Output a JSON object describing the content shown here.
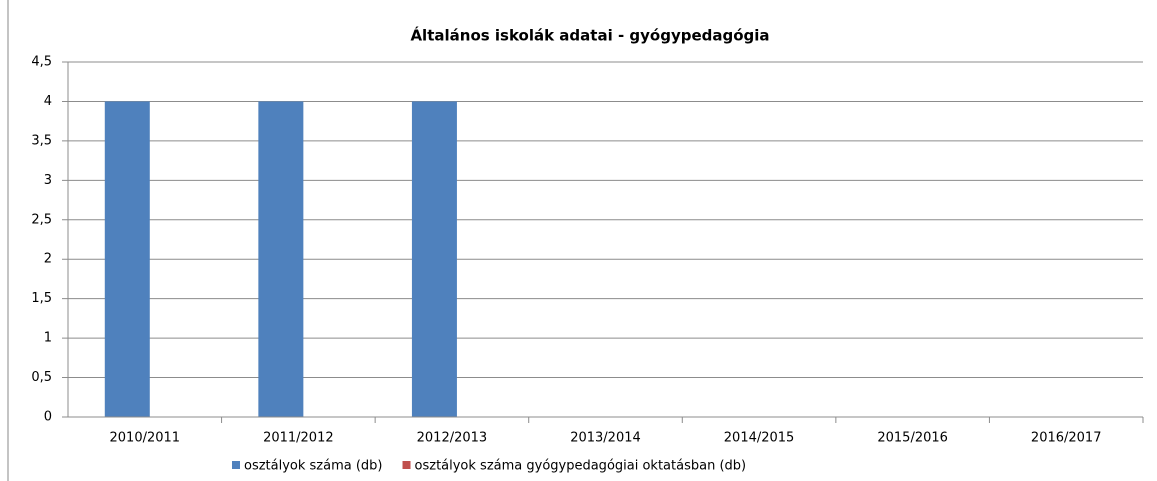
{
  "chart_data": {
    "type": "bar",
    "title": "Általános iskolák adatai - gyógypedagógia",
    "categories": [
      "2010/2011",
      "2011/2012",
      "2012/2013",
      "2013/2014",
      "2014/2015",
      "2015/2016",
      "2016/2017"
    ],
    "series": [
      {
        "name": "osztályok száma (db)",
        "color": "#4f81bd",
        "values": [
          4,
          4,
          4,
          0,
          0,
          0,
          0
        ]
      },
      {
        "name": "osztályok száma gyógypedagógiai oktatásban (db)",
        "color": "#c0504d",
        "values": [
          0,
          0,
          0,
          0,
          0,
          0,
          0
        ]
      }
    ],
    "ylim": [
      0,
      4.5
    ],
    "yticks": [
      0,
      {
        "value": 0.5,
        "label": "0,5"
      },
      1,
      {
        "value": 1.5,
        "label": "1,5"
      },
      2,
      {
        "value": 2.5,
        "label": "2,5"
      },
      3,
      {
        "value": 3.5,
        "label": "3,5"
      },
      4,
      {
        "value": 4.5,
        "label": "4,5"
      }
    ],
    "grid": true,
    "legend": "bottom"
  }
}
